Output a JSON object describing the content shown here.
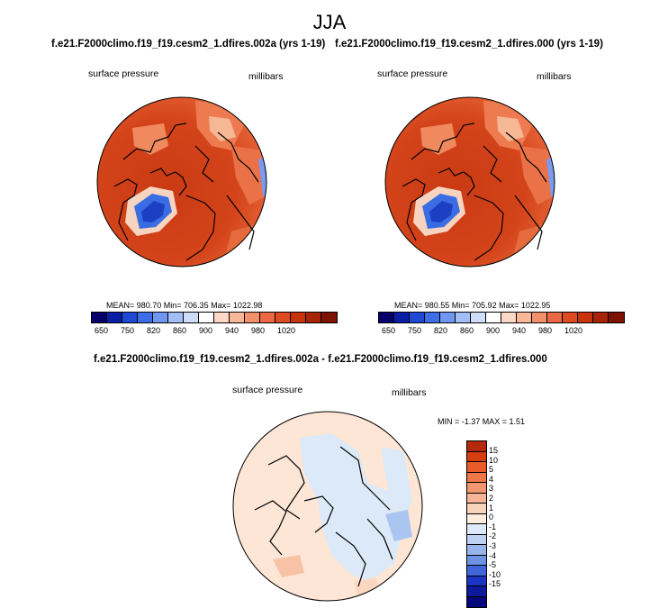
{
  "season": "JJA",
  "panels": [
    {
      "title": "f.e21.F2000climo.f19_f19.cesm2_1.dfires.002a (yrs 1-19)",
      "variable": "surface pressure",
      "units": "millibars",
      "stats": "MEAN= 980.70  Min= 706.35  Max= 1022.98"
    },
    {
      "title": "f.e21.F2000climo.f19_f19.cesm2_1.dfires.000 (yrs 1-19)",
      "variable": "surface pressure",
      "units": "millibars",
      "stats": "MEAN= 980.55  Min= 705.92  Max= 1022.95"
    }
  ],
  "diff_panel": {
    "title": "f.e21.F2000climo.f19_f19.cesm2_1.dfires.002a - f.e21.F2000climo.f19_f19.cesm2_1.dfires.000",
    "variable": "surface pressure",
    "units": "millibars",
    "stats": "MIN =  -1.37 MAX =   1.51"
  },
  "colorbar_abs": {
    "tick_labels": [
      "650",
      "750",
      "820",
      "860",
      "900",
      "940",
      "980",
      "1020"
    ],
    "colors": [
      "#08006a",
      "#0a1fa8",
      "#1f48d4",
      "#3d6ee8",
      "#6f96f0",
      "#a3bdf6",
      "#cfddf9",
      "#ffffff",
      "#fbd9c6",
      "#f8b799",
      "#f2906c",
      "#ea6845",
      "#de4a22",
      "#c8330c",
      "#a72407",
      "#7d1203"
    ]
  },
  "colorbar_diff": {
    "labels": [
      "15",
      "10",
      "5",
      "4",
      "3",
      "2",
      "1",
      "0",
      "-1",
      "-2",
      "-3",
      "-4",
      "-5",
      "-10",
      "-15"
    ],
    "colors": [
      "#b5290c",
      "#d63d12",
      "#ea5a2a",
      "#f07848",
      "#f39770",
      "#f6b598",
      "#f9d2bc",
      "#fdebdd",
      "#dde9f8",
      "#bdd1f2",
      "#97b5ec",
      "#6e92e4",
      "#4066da",
      "#1c34c2",
      "#0d1a9c",
      "#05087a"
    ]
  },
  "colors": {
    "pressure_high": "#d9471e",
    "pressure_mid": "#e86a3e",
    "greenland_low": "#2d5bd8",
    "diff_positive": "#fbe1d0",
    "diff_negative": "#d9e8f8"
  }
}
